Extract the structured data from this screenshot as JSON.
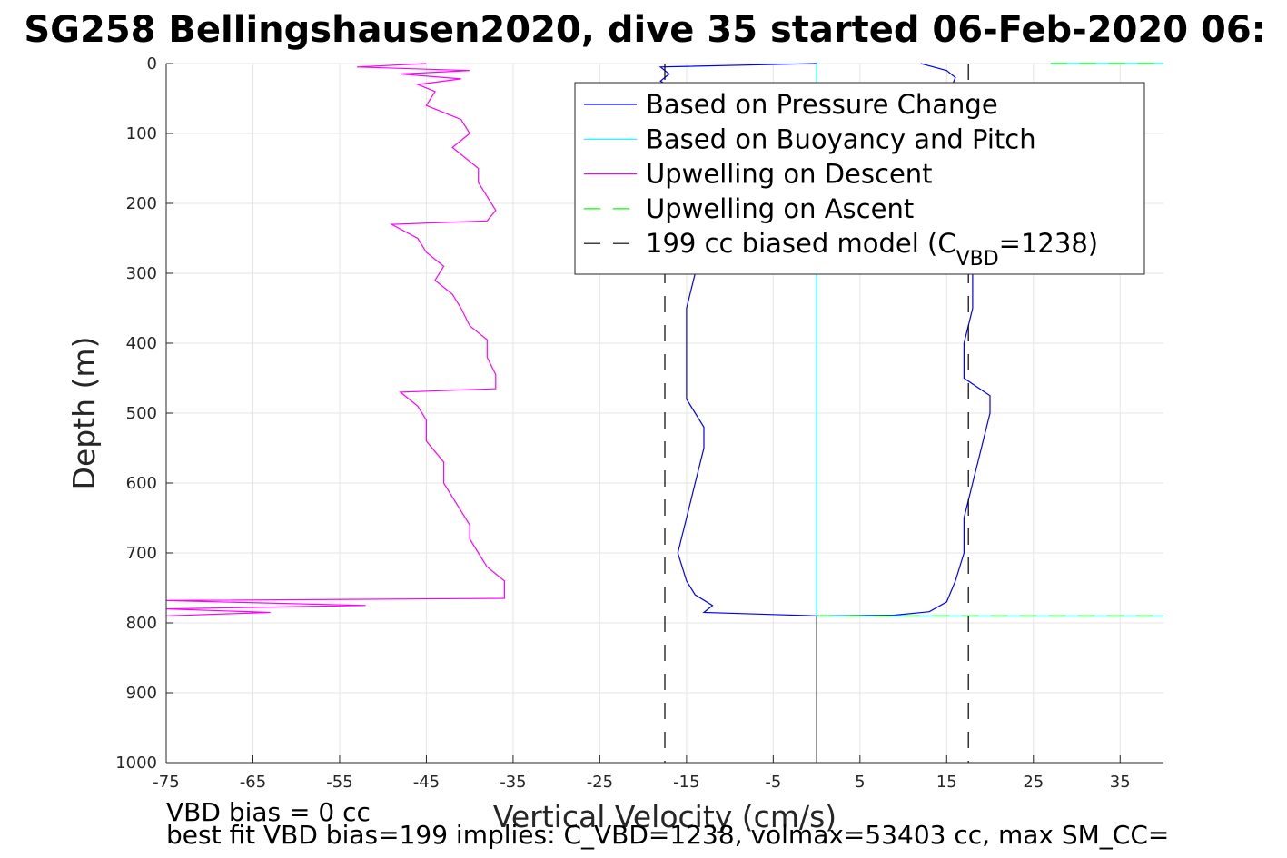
{
  "chart_data": {
    "type": "line",
    "title": "SG258 Bellingshausen2020, dive 35 started 06-Feb-2020 06:",
    "xlabel": "Vertical Velocity (cm/s)",
    "ylabel": "Depth (m)",
    "xlim": [
      -75,
      40
    ],
    "ylim": [
      0,
      1000
    ],
    "y_reversed": true,
    "grid": true,
    "legend_placement": "top-right",
    "x_ticks": [
      "-75",
      "-65",
      "-55",
      "-45",
      "-35",
      "-25",
      "-15",
      "-5",
      "5",
      "15",
      "25",
      "35"
    ],
    "y_ticks": [
      "0",
      "100",
      "200",
      "300",
      "400",
      "500",
      "600",
      "700",
      "800",
      "900",
      "1000"
    ],
    "series": [
      {
        "name": "Based on Pressure Change",
        "color": "#0000ff",
        "style": "solid",
        "segments": [
          {
            "part": "descent",
            "points": [
              [
                0,
                0
              ],
              [
                -18,
                5
              ],
              [
                -17,
                15
              ],
              [
                -18,
                25
              ],
              [
                -16,
                40
              ],
              [
                -14,
                60
              ],
              [
                -15,
                100
              ],
              [
                -14,
                150
              ],
              [
                -15,
                200
              ],
              [
                -14,
                250
              ],
              [
                -14,
                300
              ],
              [
                -15,
                350
              ],
              [
                -15,
                400
              ],
              [
                -15,
                450
              ],
              [
                -15,
                480
              ],
              [
                -13,
                520
              ],
              [
                -13,
                550
              ],
              [
                -14,
                600
              ],
              [
                -15,
                650
              ],
              [
                -16,
                700
              ],
              [
                -15,
                740
              ],
              [
                -14,
                760
              ],
              [
                -12,
                775
              ],
              [
                -13,
                785
              ],
              [
                -5,
                788
              ],
              [
                0,
                790
              ]
            ]
          },
          {
            "part": "ascent",
            "points": [
              [
                0,
                790
              ],
              [
                9,
                789
              ],
              [
                13,
                784
              ],
              [
                15,
                770
              ],
              [
                16,
                740
              ],
              [
                17,
                700
              ],
              [
                17,
                650
              ],
              [
                18,
                600
              ],
              [
                19,
                550
              ],
              [
                20,
                500
              ],
              [
                20,
                475
              ],
              [
                17,
                450
              ],
              [
                17,
                400
              ],
              [
                18,
                350
              ],
              [
                18,
                300
              ],
              [
                17,
                250
              ],
              [
                16,
                200
              ],
              [
                16,
                150
              ],
              [
                16,
                100
              ],
              [
                15,
                50
              ],
              [
                16,
                20
              ],
              [
                15,
                10
              ],
              [
                12,
                0
              ]
            ]
          }
        ]
      },
      {
        "name": "Based on Buoyancy and Pitch",
        "color": "#00ffff",
        "style": "solid",
        "segments": [
          {
            "part": "descent",
            "points": [
              [
                0,
                0
              ],
              [
                0,
                790
              ]
            ]
          },
          {
            "part": "ascent",
            "points": [
              [
                0,
                790
              ],
              [
                40,
                790
              ]
            ]
          },
          {
            "part": "surface",
            "points": [
              [
                27,
                0
              ],
              [
                40,
                0
              ]
            ]
          }
        ]
      },
      {
        "name": "Upwelling on Descent",
        "color": "#ff00ff",
        "style": "solid",
        "points": [
          [
            -45,
            0
          ],
          [
            -53,
            5
          ],
          [
            -40,
            10
          ],
          [
            -48,
            15
          ],
          [
            -41,
            22
          ],
          [
            -46,
            30
          ],
          [
            -44,
            40
          ],
          [
            -45,
            60
          ],
          [
            -41,
            80
          ],
          [
            -40,
            100
          ],
          [
            -42,
            120
          ],
          [
            -39,
            150
          ],
          [
            -39,
            170
          ],
          [
            -38,
            190
          ],
          [
            -37,
            210
          ],
          [
            -38,
            225
          ],
          [
            -49,
            230
          ],
          [
            -46,
            250
          ],
          [
            -45,
            270
          ],
          [
            -43,
            290
          ],
          [
            -44,
            310
          ],
          [
            -42,
            330
          ],
          [
            -41,
            350
          ],
          [
            -40,
            375
          ],
          [
            -38,
            395
          ],
          [
            -38,
            420
          ],
          [
            -37,
            445
          ],
          [
            -37,
            465
          ],
          [
            -48,
            470
          ],
          [
            -46,
            490
          ],
          [
            -45,
            510
          ],
          [
            -45,
            540
          ],
          [
            -43,
            570
          ],
          [
            -43,
            600
          ],
          [
            -41,
            640
          ],
          [
            -40,
            660
          ],
          [
            -40,
            680
          ],
          [
            -39,
            700
          ],
          [
            -38,
            720
          ],
          [
            -36,
            740
          ],
          [
            -36,
            765
          ],
          [
            -75,
            768
          ],
          [
            -52,
            775
          ],
          [
            -75,
            780
          ],
          [
            -63,
            785
          ],
          [
            -75,
            790
          ]
        ]
      },
      {
        "name": "Upwelling on Ascent",
        "color": "#00ff00",
        "style": "dashed",
        "segments": [
          {
            "part": "surface",
            "points": [
              [
                27,
                0
              ],
              [
                40,
                0
              ]
            ]
          },
          {
            "part": "bottom",
            "points": [
              [
                0,
                790
              ],
              [
                40,
                790
              ]
            ]
          }
        ]
      },
      {
        "name": "199 cc biased model (C_VBD=1238)",
        "color": "#000000",
        "style": "dashed",
        "segments": [
          {
            "part": "descent",
            "points": [
              [
                -17.5,
                0
              ],
              [
                -17.5,
                1000
              ]
            ]
          },
          {
            "part": "ascent",
            "points": [
              [
                17.5,
                0
              ],
              [
                17.5,
                1000
              ]
            ]
          }
        ]
      }
    ],
    "zero_line": {
      "x": 0,
      "color": "#000000"
    },
    "legend": [
      {
        "text": "Based on Pressure Change",
        "color": "#0000ff",
        "style": "solid",
        "key": "pressure"
      },
      {
        "text": "Based on Buoyancy and Pitch",
        "color": "#00ffff",
        "style": "solid",
        "key": "buoyancy"
      },
      {
        "text": "Upwelling on Descent",
        "color": "#ff00ff",
        "style": "solid",
        "key": "upwell-descent"
      },
      {
        "text": "Upwelling on Ascent",
        "color": "#00ff00",
        "style": "dashed",
        "key": "upwell-ascent"
      },
      {
        "text_main": "199 cc biased model (C",
        "text_sub": "VBD",
        "text_tail": "=1238)",
        "color": "#000000",
        "style": "dashed",
        "key": "biased-model"
      }
    ],
    "annotations": [
      "VBD bias = 0 cc",
      "best fit VBD bias=199 implies: C_VBD=1238, volmax=53403 cc, max SM_CC="
    ]
  }
}
